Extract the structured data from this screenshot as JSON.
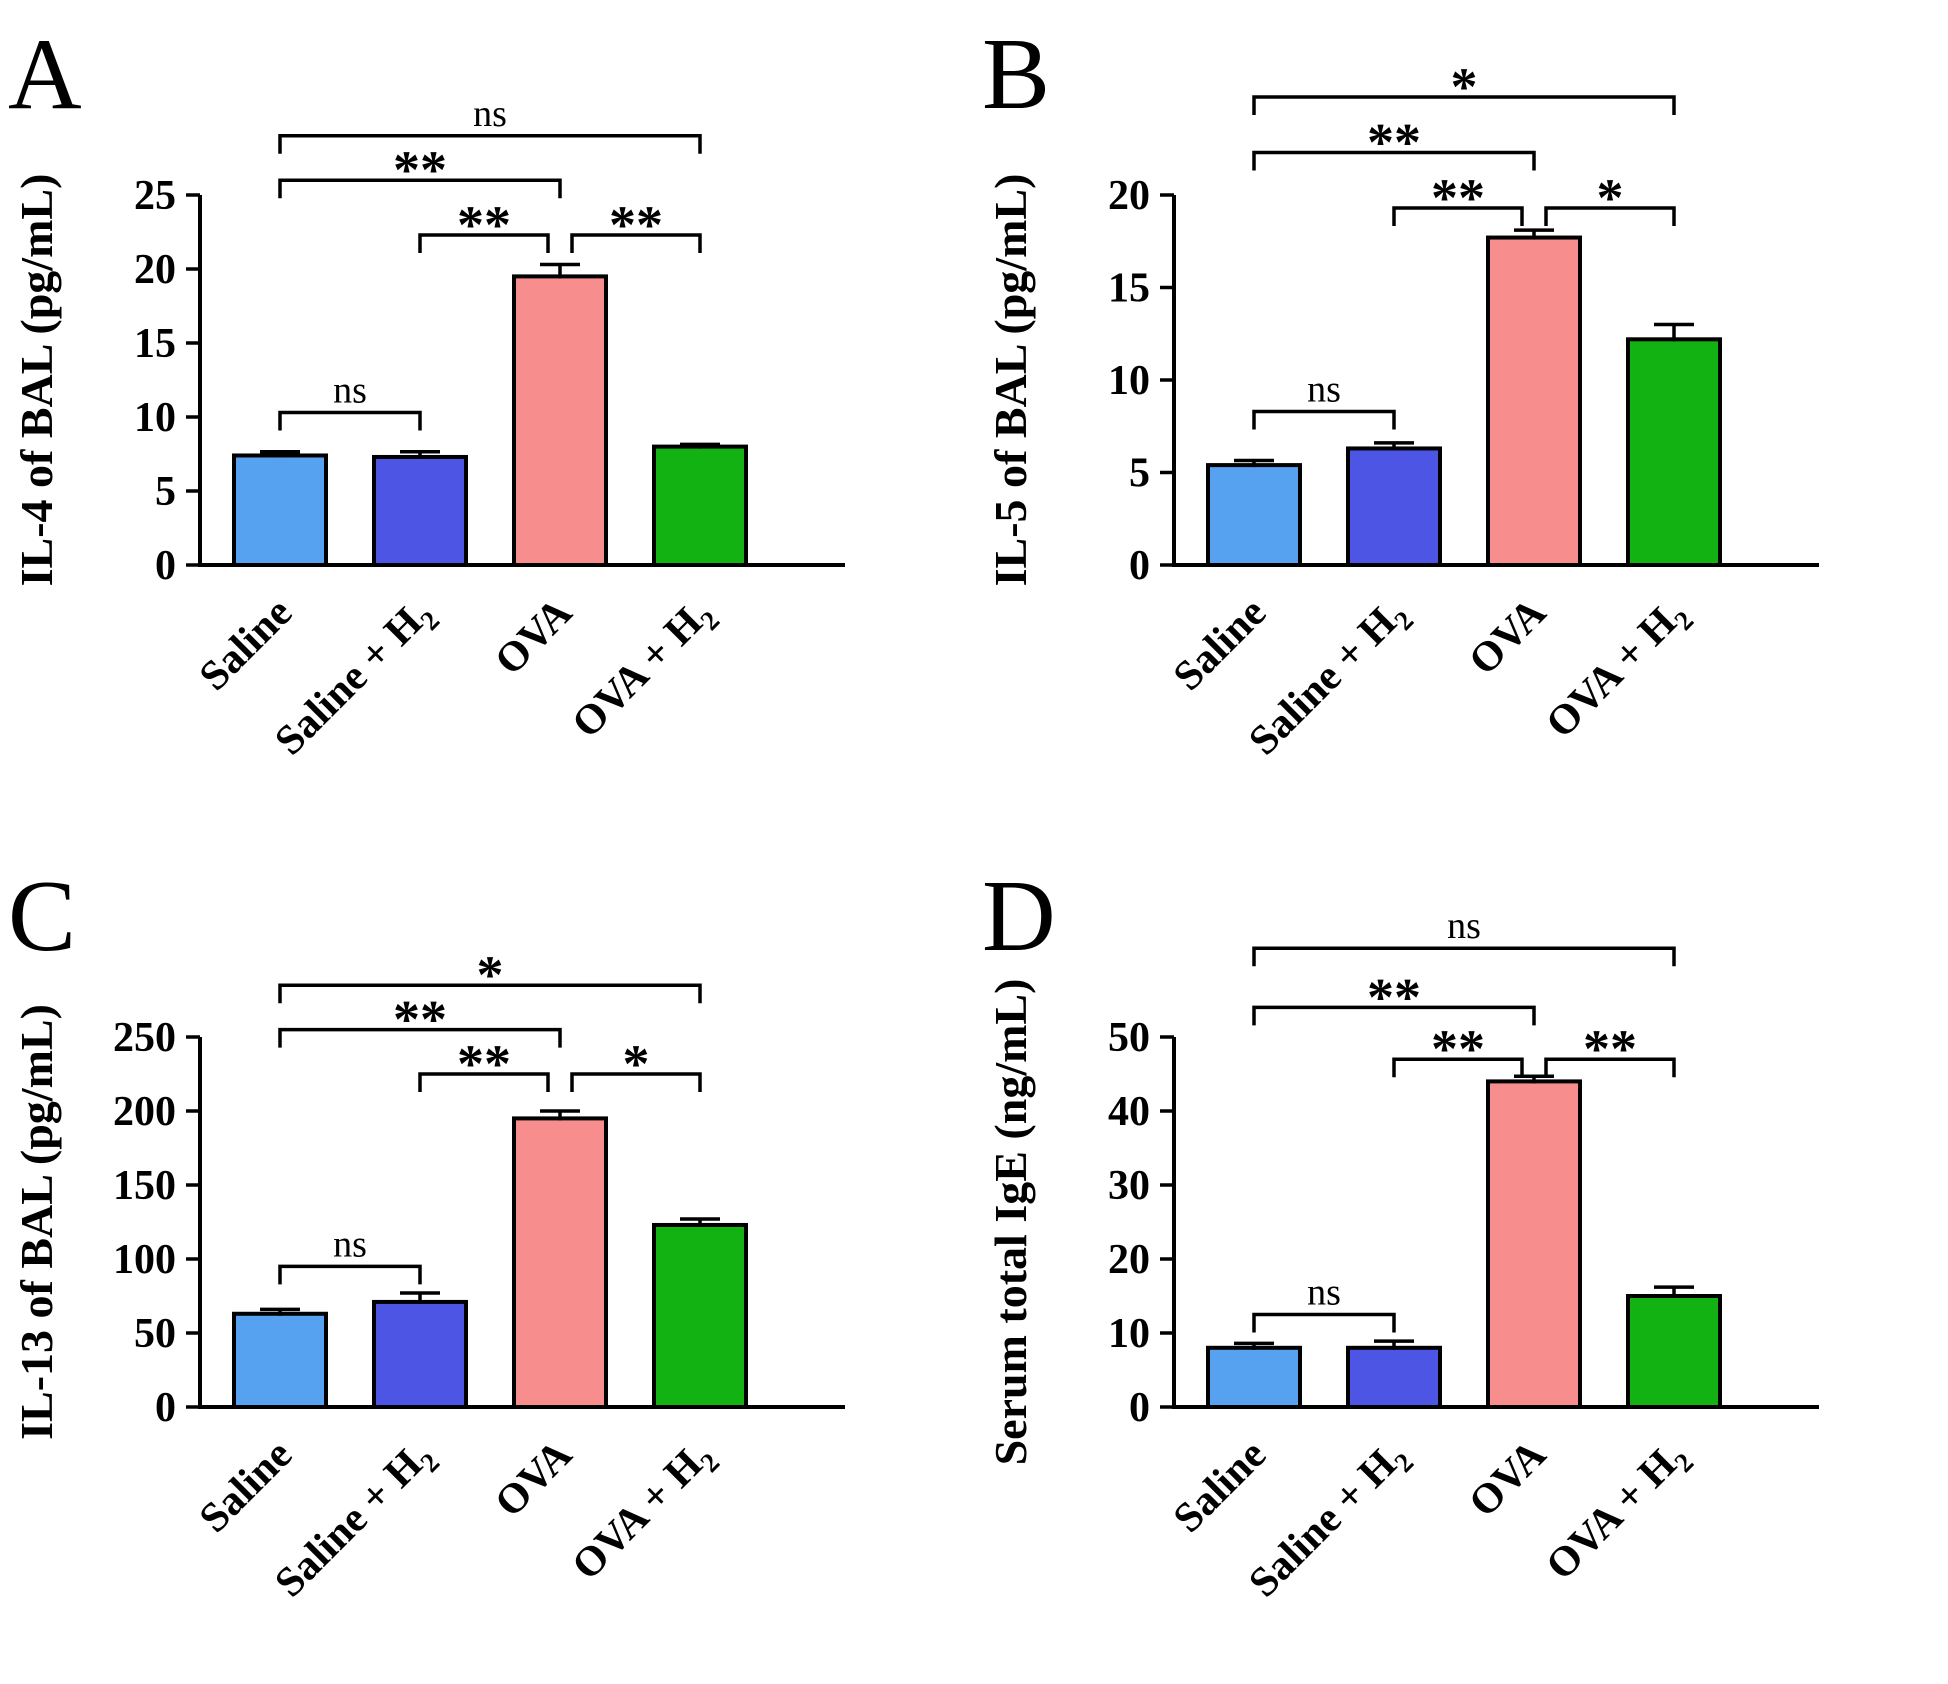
{
  "colors": {
    "bars": [
      "#57a1f1",
      "#4c55e4",
      "#f78e8d",
      "#12b212"
    ],
    "axis": "#000000",
    "background": "#ffffff"
  },
  "chart_data": [
    {
      "type": "bar",
      "panel_label": "A",
      "title": "",
      "xlabel": "",
      "ylabel": "IL-4 of BAL (pg/mL)",
      "ylim": [
        0,
        25
      ],
      "yticks": [
        0,
        5,
        10,
        15,
        20,
        25
      ],
      "grid": false,
      "legend": false,
      "categories": [
        "Saline",
        "Saline + H₂",
        "OVA",
        "OVA + H₂"
      ],
      "values": [
        7.4,
        7.3,
        19.5,
        8.0
      ],
      "errors": [
        0.25,
        0.35,
        0.8,
        0.15
      ],
      "significance_brackets": [
        {
          "from": 0,
          "to": 1,
          "label": "ns",
          "y": 10.3
        },
        {
          "from": 1,
          "to": 2,
          "label": "**",
          "y": 22.3
        },
        {
          "from": 2,
          "to": 3,
          "label": "**",
          "y": 22.3
        },
        {
          "from": 0,
          "to": 2,
          "label": "**",
          "y": 26.0
        },
        {
          "from": 0,
          "to": 3,
          "label": "ns",
          "y": 29.0
        }
      ]
    },
    {
      "type": "bar",
      "panel_label": "B",
      "title": "",
      "xlabel": "",
      "ylabel": "IL-5 of BAL (pg/mL)",
      "ylim": [
        0,
        20
      ],
      "yticks": [
        0,
        5,
        10,
        15,
        20
      ],
      "grid": false,
      "legend": false,
      "categories": [
        "Saline",
        "Saline + H₂",
        "OVA",
        "OVA + H₂"
      ],
      "values": [
        5.4,
        6.3,
        17.7,
        12.2
      ],
      "errors": [
        0.25,
        0.3,
        0.4,
        0.8
      ],
      "significance_brackets": [
        {
          "from": 0,
          "to": 1,
          "label": "ns",
          "y": 8.3
        },
        {
          "from": 1,
          "to": 2,
          "label": "**",
          "y": 19.3
        },
        {
          "from": 2,
          "to": 3,
          "label": "*",
          "y": 19.3
        },
        {
          "from": 0,
          "to": 2,
          "label": "**",
          "y": 22.3
        },
        {
          "from": 0,
          "to": 3,
          "label": "*",
          "y": 25.3
        }
      ]
    },
    {
      "type": "bar",
      "panel_label": "C",
      "title": "",
      "xlabel": "",
      "ylabel": "IL-13 of BAL (pg/mL)",
      "ylim": [
        0,
        250
      ],
      "yticks": [
        0,
        50,
        100,
        150,
        200,
        250
      ],
      "grid": false,
      "legend": false,
      "categories": [
        "Saline",
        "Saline + H₂",
        "OVA",
        "OVA + H₂"
      ],
      "values": [
        63,
        71,
        195,
        123
      ],
      "errors": [
        3,
        6,
        5,
        4
      ],
      "significance_brackets": [
        {
          "from": 0,
          "to": 1,
          "label": "ns",
          "y": 95
        },
        {
          "from": 1,
          "to": 2,
          "label": "**",
          "y": 225
        },
        {
          "from": 2,
          "to": 3,
          "label": "*",
          "y": 225
        },
        {
          "from": 0,
          "to": 2,
          "label": "**",
          "y": 255
        },
        {
          "from": 0,
          "to": 3,
          "label": "*",
          "y": 285
        }
      ]
    },
    {
      "type": "bar",
      "panel_label": "D",
      "title": "",
      "xlabel": "",
      "ylabel": "Serum total IgE (ng/mL)",
      "ylim": [
        0,
        50
      ],
      "yticks": [
        0,
        10,
        20,
        30,
        40,
        50
      ],
      "grid": false,
      "legend": false,
      "categories": [
        "Saline",
        "Saline + H₂",
        "OVA",
        "OVA + H₂"
      ],
      "values": [
        8,
        8,
        44,
        15
      ],
      "errors": [
        0.6,
        0.9,
        0.7,
        1.2
      ],
      "significance_brackets": [
        {
          "from": 0,
          "to": 1,
          "label": "ns",
          "y": 12.5
        },
        {
          "from": 1,
          "to": 2,
          "label": "**",
          "y": 47
        },
        {
          "from": 2,
          "to": 3,
          "label": "**",
          "y": 47
        },
        {
          "from": 0,
          "to": 2,
          "label": "**",
          "y": 54
        },
        {
          "from": 0,
          "to": 3,
          "label": "ns",
          "y": 62
        }
      ]
    }
  ]
}
